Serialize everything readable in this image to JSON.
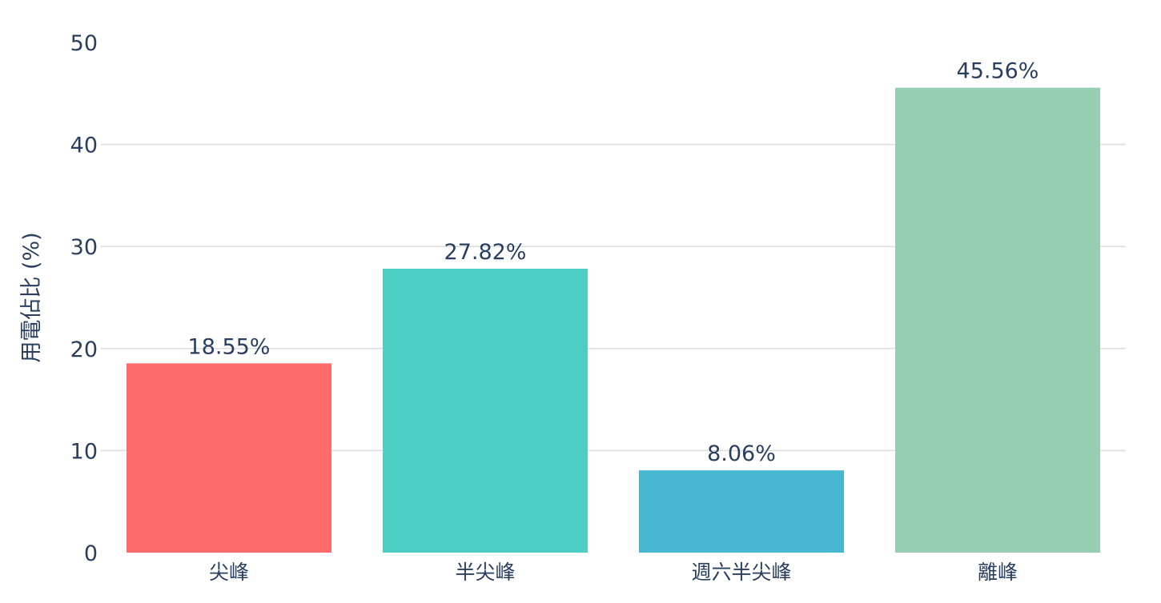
{
  "chart_data": {
    "type": "bar",
    "title": "",
    "xlabel": "",
    "ylabel": "用電佔比 (%)",
    "ylim": [
      0,
      50
    ],
    "yticks": [
      0,
      10,
      20,
      30,
      40,
      50
    ],
    "grid": true,
    "categories": [
      "尖峰",
      "半尖峰",
      "週六半尖峰",
      "離峰"
    ],
    "values": [
      18.55,
      27.82,
      8.06,
      45.56
    ],
    "data_labels": [
      "18.55%",
      "27.82%",
      "8.06%",
      "45.56%"
    ],
    "colors": [
      "#FF6B6B",
      "#4ECDC4",
      "#45B7D1",
      "#96CEB4"
    ]
  }
}
